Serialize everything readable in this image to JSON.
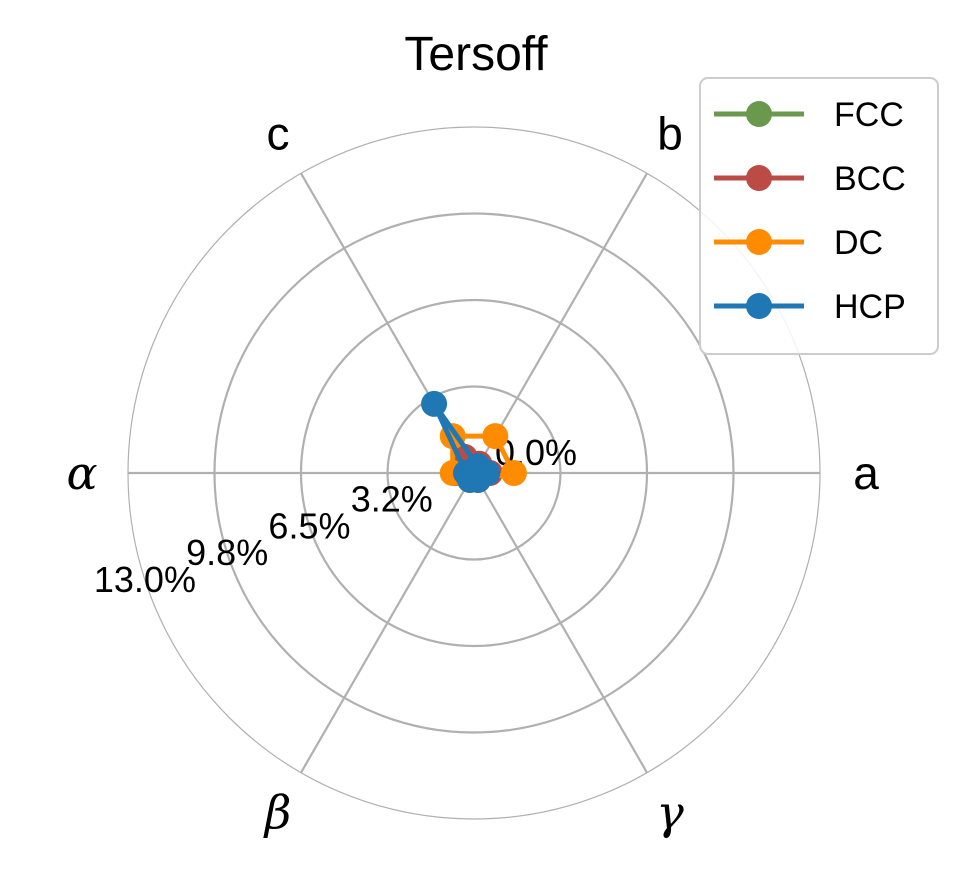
{
  "chart_data": {
    "type": "radar",
    "title": "Tersoff",
    "axes": [
      "a",
      "b",
      "c",
      "α",
      "β",
      "γ"
    ],
    "radial_ticks": [
      "0.0%",
      "3.2%",
      "6.5%",
      "9.8%",
      "13.0%"
    ],
    "radial_range": [
      0,
      13.0
    ],
    "grid": true,
    "legend_position": "top-right",
    "series": [
      {
        "name": "FCC",
        "color": "#6a994e",
        "values": [
          0.3,
          0.3,
          0.4,
          0.3,
          0.3,
          0.3
        ]
      },
      {
        "name": "BCC",
        "color": "#bc4b45",
        "values": [
          0.6,
          0.4,
          0.7,
          0.7,
          0.3,
          0.3
        ]
      },
      {
        "name": "DC",
        "color": "#ff8c00",
        "values": [
          1.5,
          1.6,
          1.6,
          0.8,
          0.3,
          0.3
        ]
      },
      {
        "name": "HCP",
        "color": "#1f77b4",
        "values": [
          0.5,
          0.3,
          3.0,
          0.3,
          0.3,
          0.3
        ]
      }
    ]
  }
}
